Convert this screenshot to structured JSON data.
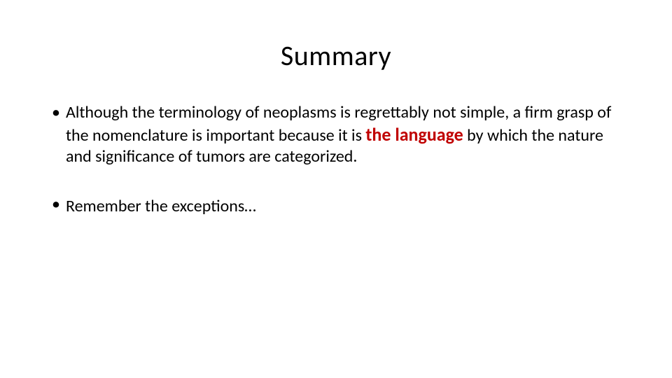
{
  "slide": {
    "title": "Summary",
    "title_fontsize": 40,
    "title_font_family": "Calibri Light",
    "title_font_weight": 300,
    "title_color": "#000000",
    "background_color": "#ffffff",
    "body_fontsize": 24,
    "body_color": "#000000",
    "body_line_height": 1.25,
    "bullets": [
      {
        "before": "Although the terminology of neoplasms is regrettably not simple, a firm grasp of the nomenclature is important because it is ",
        "emph": "the language",
        "after": " by which the nature and significance of tumors are categorized."
      },
      {
        "before": "Remember the exceptions…",
        "emph": "",
        "after": ""
      }
    ],
    "emphasis_style": {
      "color": "#c00000",
      "font_weight": 700,
      "fontsize": 26
    }
  }
}
